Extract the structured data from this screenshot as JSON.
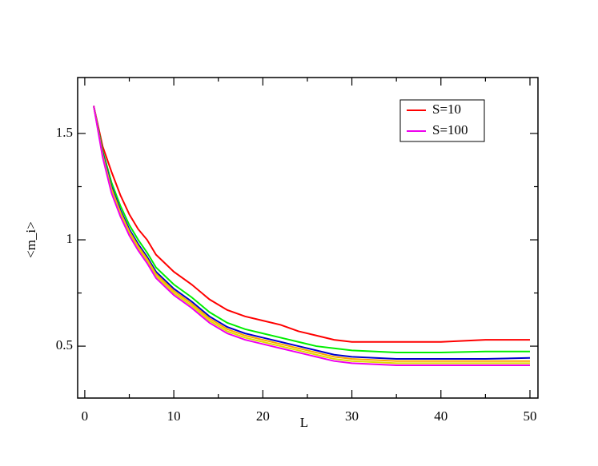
{
  "chart_data": {
    "type": "line",
    "x_label": "L",
    "y_label": "<m_i>",
    "x": [
      1,
      2,
      3,
      4,
      5,
      6,
      7,
      8,
      10,
      12,
      14,
      16,
      18,
      20,
      22,
      24,
      26,
      28,
      30,
      35,
      40,
      45,
      50
    ],
    "series": [
      {
        "name": "S=10",
        "color": "#ff0000",
        "values": [
          1.63,
          1.44,
          1.32,
          1.21,
          1.12,
          1.05,
          1.0,
          0.93,
          0.85,
          0.79,
          0.72,
          0.67,
          0.64,
          0.62,
          0.6,
          0.57,
          0.55,
          0.53,
          0.52,
          0.52,
          0.52,
          0.53,
          0.53
        ]
      },
      {
        "color": "#00ee00",
        "values": [
          1.63,
          1.42,
          1.27,
          1.16,
          1.07,
          1.0,
          0.94,
          0.87,
          0.79,
          0.73,
          0.66,
          0.61,
          0.58,
          0.56,
          0.54,
          0.52,
          0.5,
          0.49,
          0.48,
          0.47,
          0.47,
          0.475,
          0.475
        ]
      },
      {
        "color": "#0000cc",
        "values": [
          1.63,
          1.41,
          1.25,
          1.14,
          1.05,
          0.98,
          0.92,
          0.85,
          0.77,
          0.71,
          0.64,
          0.59,
          0.56,
          0.54,
          0.52,
          0.5,
          0.48,
          0.46,
          0.45,
          0.44,
          0.44,
          0.44,
          0.445
        ]
      },
      {
        "color": "#ffa500",
        "values": [
          1.63,
          1.4,
          1.24,
          1.13,
          1.04,
          0.97,
          0.91,
          0.84,
          0.76,
          0.7,
          0.63,
          0.58,
          0.55,
          0.53,
          0.51,
          0.49,
          0.47,
          0.45,
          0.44,
          0.43,
          0.43,
          0.43,
          0.43
        ]
      },
      {
        "color": "#dddd00",
        "values": [
          1.63,
          1.4,
          1.23,
          1.12,
          1.03,
          0.96,
          0.9,
          0.83,
          0.75,
          0.69,
          0.62,
          0.57,
          0.54,
          0.52,
          0.5,
          0.48,
          0.46,
          0.44,
          0.43,
          0.42,
          0.42,
          0.42,
          0.42
        ]
      },
      {
        "name": "S=100",
        "color": "#ee00ee",
        "values": [
          1.63,
          1.39,
          1.22,
          1.11,
          1.02,
          0.95,
          0.89,
          0.82,
          0.74,
          0.68,
          0.61,
          0.56,
          0.53,
          0.51,
          0.49,
          0.47,
          0.45,
          0.43,
          0.42,
          0.41,
          0.41,
          0.41,
          0.41
        ]
      }
    ],
    "xlim": [
      -0.8,
      50.9
    ],
    "xticks": [
      0,
      10,
      20,
      30,
      40,
      50
    ],
    "xminor_ticks": [
      5,
      15,
      25,
      35,
      45
    ],
    "ylim": [
      0.256,
      1.763
    ],
    "yticks": [
      0.5,
      1,
      1.5
    ],
    "yminor_ticks": [
      0.75,
      1.25
    ],
    "legend": "upper right"
  }
}
